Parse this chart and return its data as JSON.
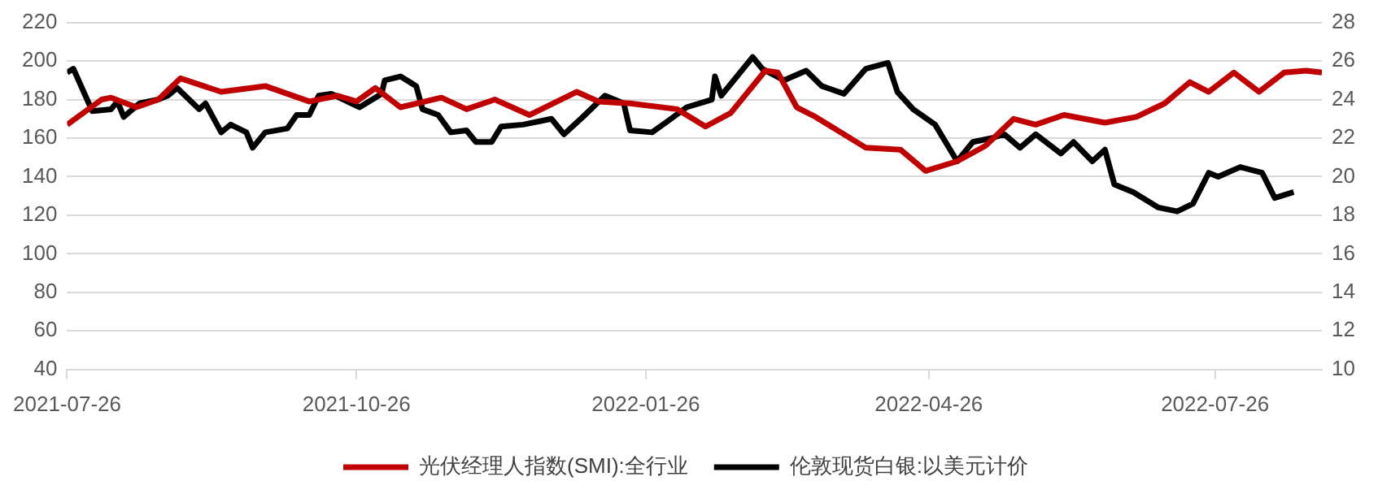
{
  "chart_data": {
    "type": "line",
    "xlim": [
      "2021-07-26",
      "2022-08-29"
    ],
    "xticks": [
      "2021-07-26",
      "2021-10-26",
      "2022-01-26",
      "2022-04-26",
      "2022-07-26"
    ],
    "ylim": [
      40,
      220
    ],
    "yticks": [
      40,
      60,
      80,
      100,
      120,
      140,
      160,
      180,
      200,
      220
    ],
    "y2lim": [
      10,
      28
    ],
    "y2ticks": [
      10,
      12,
      14,
      16,
      18,
      20,
      22,
      24,
      26,
      28
    ],
    "grid": "y",
    "legend": "bottom",
    "marker": "none",
    "line_style": "solid",
    "series": [
      {
        "name": "光伏经理人指数(SMI):全行业",
        "color": "#c00000",
        "x": [
          "2021-07-26",
          "2021-08-06",
          "2021-08-09",
          "2021-08-17",
          "2021-08-24",
          "2021-08-31",
          "2021-09-13",
          "2021-09-27",
          "2021-10-11",
          "2021-10-20",
          "2021-10-26",
          "2021-11-01",
          "2021-11-09",
          "2021-11-22",
          "2021-11-30",
          "2021-12-09",
          "2021-12-20",
          "2022-01-04",
          "2022-01-11",
          "2022-01-21",
          "2022-02-05",
          "2022-02-14",
          "2022-02-22",
          "2022-03-05",
          "2022-03-09",
          "2022-03-15",
          "2022-03-21",
          "2022-04-06",
          "2022-04-17",
          "2022-04-25",
          "2022-05-05",
          "2022-05-14",
          "2022-05-23",
          "2022-05-30",
          "2022-06-08",
          "2022-06-21",
          "2022-07-01",
          "2022-07-10",
          "2022-07-18",
          "2022-07-24",
          "2022-08-01",
          "2022-08-09",
          "2022-08-17",
          "2022-08-24",
          "2022-08-29"
        ],
        "values": [
          167,
          180,
          181,
          176,
          180,
          191,
          184,
          187,
          179,
          182,
          179,
          186,
          176,
          181,
          175,
          180,
          172,
          184,
          179,
          178,
          175,
          166,
          173,
          195,
          194,
          176,
          171,
          155,
          154,
          143,
          148,
          156,
          170,
          167,
          172,
          168,
          171,
          178,
          189,
          184,
          194,
          184,
          194,
          195,
          194
        ]
      },
      {
        "name": "伦敦现货白银:以美元计价",
        "color": "#000000",
        "axis": "y2",
        "x": [
          "2021-07-26",
          "2021-07-28",
          "2021-08-03",
          "2021-08-09",
          "2021-08-11",
          "2021-08-13",
          "2021-08-18",
          "2021-08-24",
          "2021-08-27",
          "2021-08-30",
          "2021-09-06",
          "2021-09-08",
          "2021-09-13",
          "2021-09-16",
          "2021-09-21",
          "2021-09-23",
          "2021-09-27",
          "2021-10-04",
          "2021-10-07",
          "2021-10-11",
          "2021-10-14",
          "2021-10-18",
          "2021-10-27",
          "2021-11-03",
          "2021-11-04",
          "2021-11-09",
          "2021-11-14",
          "2021-11-16",
          "2021-11-21",
          "2021-11-25",
          "2021-11-30",
          "2021-12-03",
          "2021-12-08",
          "2021-12-11",
          "2021-12-18",
          "2021-12-27",
          "2021-12-31",
          "2022-01-06",
          "2022-01-13",
          "2022-01-19",
          "2022-01-21",
          "2022-01-28",
          "2022-02-03",
          "2022-02-08",
          "2022-02-16",
          "2022-02-17",
          "2022-02-19",
          "2022-02-24",
          "2022-03-01",
          "2022-03-04",
          "2022-03-11",
          "2022-03-18",
          "2022-03-23",
          "2022-03-30",
          "2022-04-06",
          "2022-04-13",
          "2022-04-16",
          "2022-04-21",
          "2022-04-28",
          "2022-05-05",
          "2022-05-10",
          "2022-05-16",
          "2022-05-20",
          "2022-05-25",
          "2022-05-30",
          "2022-06-07",
          "2022-06-11",
          "2022-06-17",
          "2022-06-21",
          "2022-06-24",
          "2022-06-30",
          "2022-07-08",
          "2022-07-14",
          "2022-07-19",
          "2022-07-24",
          "2022-07-27",
          "2022-08-03",
          "2022-08-10",
          "2022-08-14",
          "2022-08-20"
        ],
        "values": [
          25.4,
          25.6,
          23.4,
          23.5,
          23.9,
          23.1,
          23.8,
          24.0,
          24.2,
          24.6,
          23.5,
          23.8,
          22.3,
          22.7,
          22.3,
          21.5,
          22.3,
          22.5,
          23.2,
          23.2,
          24.2,
          24.3,
          23.6,
          24.3,
          25.0,
          25.2,
          24.7,
          23.5,
          23.2,
          22.3,
          22.4,
          21.8,
          21.8,
          22.6,
          22.7,
          23.0,
          22.2,
          23.1,
          24.2,
          23.8,
          22.4,
          22.3,
          23.0,
          23.6,
          24.0,
          25.2,
          24.2,
          25.2,
          26.2,
          25.6,
          25.0,
          25.5,
          24.7,
          24.3,
          25.6,
          25.9,
          24.4,
          23.5,
          22.7,
          20.8,
          21.8,
          22.0,
          22.2,
          21.5,
          22.2,
          21.2,
          21.8,
          20.8,
          21.4,
          19.6,
          19.2,
          18.4,
          18.2,
          18.6,
          20.2,
          20.0,
          20.5,
          20.2,
          18.9,
          19.2
        ]
      }
    ]
  }
}
